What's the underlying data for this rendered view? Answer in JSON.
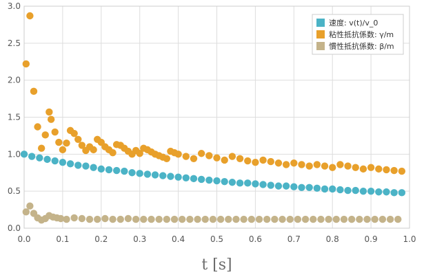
{
  "chart_data": {
    "type": "scatter",
    "title": "",
    "xlabel": "t [s]",
    "ylabel": "",
    "xlim": [
      0,
      1.0
    ],
    "ylim": [
      0,
      3.0
    ],
    "xticks": [
      "0.0",
      "0.1",
      "0.2",
      "0.3",
      "0.4",
      "0.5",
      "0.6",
      "0.7",
      "0.8",
      "0.9",
      "1.0"
    ],
    "yticks": [
      "0.0",
      "0.5",
      "1.0",
      "1.5",
      "2.0",
      "2.5",
      "3.0"
    ],
    "grid": true,
    "legend_position": "top-right",
    "series": [
      {
        "name": "速度: v(t)/v_0",
        "color": "#4bb3c6",
        "x": [
          0.0,
          0.02,
          0.04,
          0.06,
          0.08,
          0.1,
          0.12,
          0.14,
          0.16,
          0.18,
          0.2,
          0.22,
          0.24,
          0.26,
          0.28,
          0.3,
          0.32,
          0.34,
          0.36,
          0.38,
          0.4,
          0.42,
          0.44,
          0.46,
          0.48,
          0.5,
          0.52,
          0.54,
          0.56,
          0.58,
          0.6,
          0.62,
          0.64,
          0.66,
          0.68,
          0.7,
          0.72,
          0.74,
          0.76,
          0.78,
          0.8,
          0.82,
          0.84,
          0.86,
          0.88,
          0.9,
          0.92,
          0.94,
          0.96,
          0.98
        ],
        "y": [
          1.0,
          0.97,
          0.95,
          0.93,
          0.91,
          0.89,
          0.87,
          0.85,
          0.84,
          0.82,
          0.8,
          0.79,
          0.78,
          0.77,
          0.75,
          0.74,
          0.73,
          0.72,
          0.71,
          0.7,
          0.69,
          0.68,
          0.67,
          0.66,
          0.65,
          0.64,
          0.63,
          0.62,
          0.61,
          0.61,
          0.6,
          0.59,
          0.58,
          0.57,
          0.57,
          0.56,
          0.55,
          0.55,
          0.54,
          0.53,
          0.53,
          0.52,
          0.51,
          0.51,
          0.5,
          0.5,
          0.49,
          0.49,
          0.48,
          0.48
        ]
      },
      {
        "name": "粘性抵抗係数: γ/m",
        "color": "#e8a02b",
        "x": [
          0.005,
          0.015,
          0.025,
          0.035,
          0.045,
          0.055,
          0.065,
          0.07,
          0.08,
          0.09,
          0.1,
          0.11,
          0.12,
          0.13,
          0.14,
          0.15,
          0.16,
          0.17,
          0.18,
          0.19,
          0.2,
          0.21,
          0.22,
          0.23,
          0.24,
          0.25,
          0.26,
          0.27,
          0.28,
          0.29,
          0.3,
          0.31,
          0.32,
          0.33,
          0.34,
          0.35,
          0.36,
          0.37,
          0.38,
          0.39,
          0.4,
          0.42,
          0.44,
          0.46,
          0.48,
          0.5,
          0.52,
          0.54,
          0.56,
          0.58,
          0.6,
          0.62,
          0.64,
          0.66,
          0.68,
          0.7,
          0.72,
          0.74,
          0.76,
          0.78,
          0.8,
          0.82,
          0.84,
          0.86,
          0.88,
          0.9,
          0.92,
          0.94,
          0.96,
          0.98
        ],
        "y": [
          2.22,
          2.87,
          1.85,
          1.37,
          1.08,
          1.26,
          1.57,
          1.47,
          1.3,
          1.16,
          1.06,
          1.15,
          1.32,
          1.28,
          1.2,
          1.12,
          1.05,
          1.1,
          1.06,
          1.2,
          1.16,
          1.1,
          1.06,
          1.02,
          1.13,
          1.12,
          1.08,
          1.04,
          1.0,
          1.05,
          1.01,
          1.08,
          1.06,
          1.03,
          1.0,
          0.98,
          0.96,
          0.94,
          1.04,
          1.02,
          1.0,
          0.97,
          0.94,
          1.01,
          0.98,
          0.95,
          0.92,
          0.97,
          0.94,
          0.91,
          0.89,
          0.92,
          0.9,
          0.88,
          0.86,
          0.88,
          0.86,
          0.84,
          0.86,
          0.84,
          0.82,
          0.86,
          0.84,
          0.82,
          0.8,
          0.82,
          0.8,
          0.79,
          0.78,
          0.77
        ]
      },
      {
        "name": "慣性抵抗係数: β/m",
        "color": "#c4b38a",
        "x": [
          0.005,
          0.015,
          0.025,
          0.035,
          0.045,
          0.055,
          0.065,
          0.075,
          0.085,
          0.095,
          0.11,
          0.13,
          0.15,
          0.17,
          0.19,
          0.21,
          0.23,
          0.25,
          0.27,
          0.29,
          0.31,
          0.33,
          0.35,
          0.37,
          0.39,
          0.41,
          0.43,
          0.45,
          0.47,
          0.49,
          0.51,
          0.53,
          0.55,
          0.57,
          0.59,
          0.61,
          0.63,
          0.65,
          0.67,
          0.69,
          0.71,
          0.73,
          0.75,
          0.77,
          0.79,
          0.81,
          0.83,
          0.85,
          0.87,
          0.89,
          0.91,
          0.93,
          0.95,
          0.97
        ],
        "y": [
          0.22,
          0.3,
          0.2,
          0.14,
          0.11,
          0.13,
          0.17,
          0.15,
          0.14,
          0.13,
          0.12,
          0.14,
          0.13,
          0.12,
          0.12,
          0.13,
          0.12,
          0.12,
          0.13,
          0.12,
          0.12,
          0.12,
          0.12,
          0.12,
          0.12,
          0.12,
          0.12,
          0.12,
          0.12,
          0.12,
          0.12,
          0.12,
          0.12,
          0.12,
          0.12,
          0.12,
          0.12,
          0.12,
          0.12,
          0.12,
          0.12,
          0.12,
          0.12,
          0.12,
          0.12,
          0.12,
          0.12,
          0.12,
          0.12,
          0.12,
          0.12,
          0.12,
          0.12,
          0.12
        ]
      }
    ]
  }
}
